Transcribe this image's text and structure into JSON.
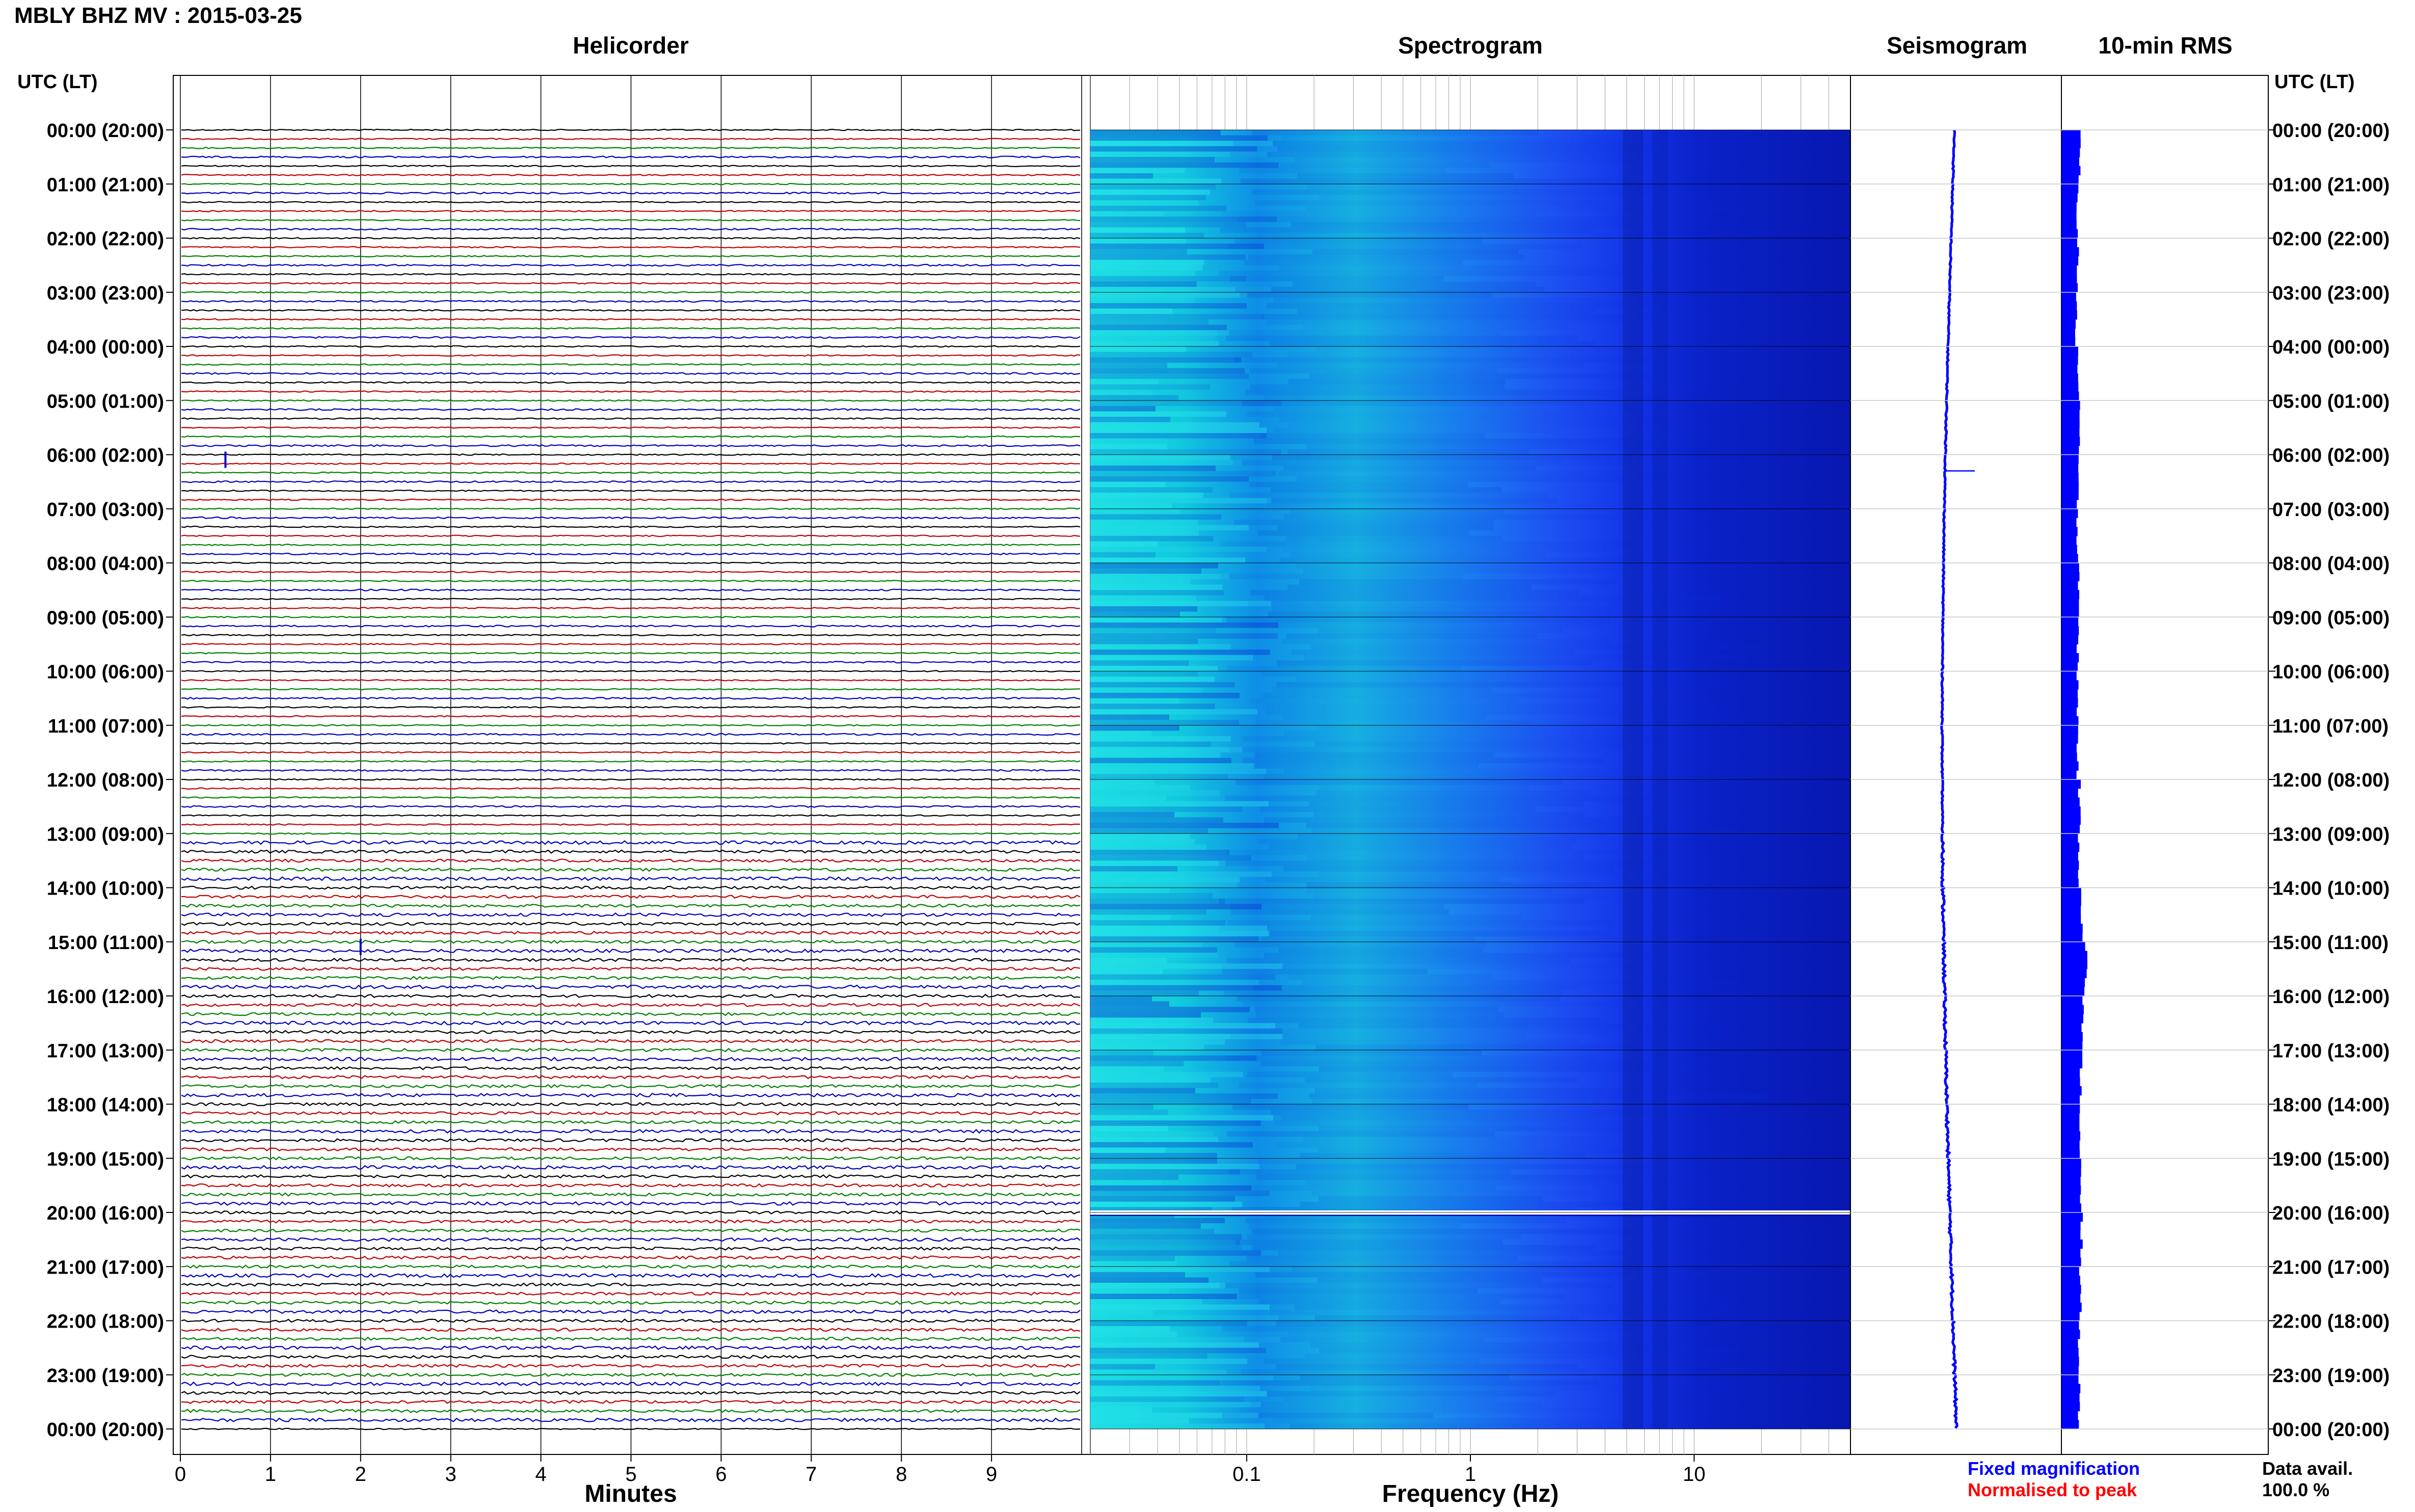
{
  "header": {
    "title": "MBLY BHZ MV : 2015-03-25",
    "time_axis_label": "UTC (LT)"
  },
  "panels": {
    "helicorder": "Helicorder",
    "spectrogram": "Spectrogram",
    "seismogram": "Seismogram",
    "rms": "10-min RMS"
  },
  "axes": {
    "minutes_label": "Minutes",
    "frequency_label": "Frequency (Hz)"
  },
  "legend": {
    "fixed": "Fixed magnification",
    "normalised": "Normalised to peak"
  },
  "availability": {
    "label": "Data avail.",
    "value": "100.0 %"
  },
  "colors": {
    "trace_cycle": [
      "#000000",
      "#c00000",
      "#008000",
      "#0000c0"
    ],
    "fixed_magnification": "#0000ff",
    "normalised_to_peak": "#ff0000",
    "seismogram_trace": "#0000ff",
    "rms_bars": "#0000ff",
    "spectrogram_low": "#00e6e6",
    "spectrogram_high": "#0000a0"
  },
  "chart_data": [
    {
      "type": "line",
      "panel": "helicorder",
      "x_ticks": [
        "0",
        "1",
        "2",
        "3",
        "4",
        "5",
        "6",
        "7",
        "8",
        "9"
      ],
      "xlim": [
        0,
        10
      ],
      "xlabel": "Minutes",
      "rows_per_hour": 6,
      "hours": 24,
      "row_color_cycle": [
        "black",
        "red",
        "green",
        "blue"
      ],
      "events": [
        {
          "hour": 6,
          "minute_offset": 0.5
        },
        {
          "hour": 15,
          "minute_offset": 2.0
        }
      ]
    },
    {
      "type": "heatmap",
      "panel": "spectrogram",
      "x_scale": "log",
      "xlim": [
        0.02,
        50
      ],
      "x_ticks": [
        "0.1",
        "1",
        "10"
      ],
      "xlabel": "Frequency (Hz)",
      "colormap": "cyan (high energy) to dark blue (low energy)",
      "gap_hour": 20
    },
    {
      "type": "line",
      "panel": "seismogram",
      "description_of_values": "long-period trace, slowly drifting",
      "spike_hour": 6.3
    },
    {
      "type": "bar",
      "panel": "rms",
      "orientation": "horizontal",
      "values": [
        0.22,
        0.2,
        0.2,
        0.18,
        0.2,
        0.22,
        0.2,
        0.2,
        0.22,
        0.2,
        0.2,
        0.2,
        0.22,
        0.22,
        0.25,
        0.3,
        0.26,
        0.24,
        0.22,
        0.23,
        0.25,
        0.23,
        0.22,
        0.22
      ]
    },
    {
      "type": "table",
      "panel": "time-axis",
      "y_ticks": [
        "00:00 (20:00)",
        "01:00 (21:00)",
        "02:00 (22:00)",
        "03:00 (23:00)",
        "04:00 (00:00)",
        "05:00 (01:00)",
        "06:00 (02:00)",
        "07:00 (03:00)",
        "08:00 (04:00)",
        "09:00 (05:00)",
        "10:00 (06:00)",
        "11:00 (07:00)",
        "12:00 (08:00)",
        "13:00 (09:00)",
        "14:00 (10:00)",
        "15:00 (11:00)",
        "16:00 (12:00)",
        "17:00 (13:00)",
        "18:00 (14:00)",
        "19:00 (15:00)",
        "20:00 (16:00)",
        "21:00 (17:00)",
        "22:00 (18:00)",
        "23:00 (19:00)",
        "00:00 (20:00)"
      ]
    }
  ]
}
